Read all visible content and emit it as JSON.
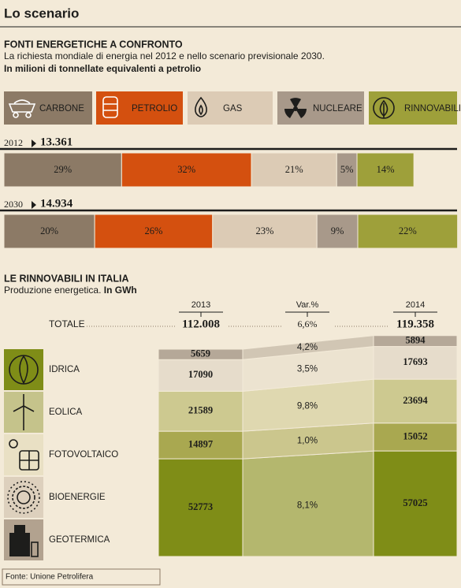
{
  "header": {
    "title": "Lo scenario"
  },
  "chart_data": [
    {
      "type": "proportional-bar",
      "title": "FONTI ENERGETICHE A CONFRONTO",
      "subtitle": "La richiesta mondiale di energia nel 2012 e nello scenario previsionale 2030.",
      "unit": "In milioni di tonnellate equivalenti a petrolio",
      "sources": [
        {
          "name": "CARBONE",
          "color": "#8c7a66"
        },
        {
          "name": "PETROLIO",
          "color": "#d4500f"
        },
        {
          "name": "GAS",
          "color": "#dccbb5"
        },
        {
          "name": "NUCLEARE",
          "color": "#a8998a"
        },
        {
          "name": "RINNOVABILI",
          "color": "#9ea03a"
        }
      ],
      "years": [
        {
          "year": "2012",
          "total": {
            "value": 13361,
            "label": "13.361"
          },
          "shares": [
            {
              "value": 29,
              "label": "29%"
            },
            {
              "value": 32,
              "label": "32%"
            },
            {
              "value": 21,
              "label": "21%"
            },
            {
              "value": 5,
              "label": "5%"
            },
            {
              "value": 14,
              "label": "14%"
            }
          ]
        },
        {
          "year": "2030",
          "total": {
            "value": 14934,
            "label": "14.934"
          },
          "shares": [
            {
              "value": 20,
              "label": "20%"
            },
            {
              "value": 26,
              "label": "26%"
            },
            {
              "value": 23,
              "label": "23%"
            },
            {
              "value": 9,
              "label": "9%"
            },
            {
              "value": 22,
              "label": "22%"
            }
          ]
        }
      ]
    },
    {
      "type": "stacked-column-flow",
      "title": "LE RINNOVABILI IN ITALIA",
      "subtitle": "Produzione energetica.",
      "unit": "In GWh",
      "years": [
        "2013",
        "2014"
      ],
      "change_label": "Var.%",
      "total_label": "TOTALE",
      "totals": [
        {
          "value": 112008,
          "label": "112.008"
        },
        {
          "value": 119358,
          "label": "119.358"
        }
      ],
      "total_change": {
        "value": 6.6,
        "label": "6,6%"
      },
      "categories": [
        "IDRICA",
        "EOLICA",
        "FOTOVOLTAICO",
        "BIOENERGIE",
        "GEOTERMICA"
      ],
      "colors": [
        "#7f8d17",
        "#a9a850",
        "#cdc990",
        "#e6dccb",
        "#b5a898"
      ],
      "values": [
        [
          52773,
          14897,
          21589,
          17090,
          5659
        ],
        [
          57025,
          15052,
          23694,
          17693,
          5894
        ]
      ],
      "changes": [
        {
          "value": 8.1,
          "label": "8,1%"
        },
        {
          "value": 1.0,
          "label": "1,0%"
        },
        {
          "value": 9.8,
          "label": "9,8%"
        },
        {
          "value": 3.5,
          "label": "3,5%"
        },
        {
          "value": 4.2,
          "label": "4,2%"
        }
      ]
    }
  ],
  "footer": {
    "source": "Fonte: Unione Petrolifera"
  }
}
